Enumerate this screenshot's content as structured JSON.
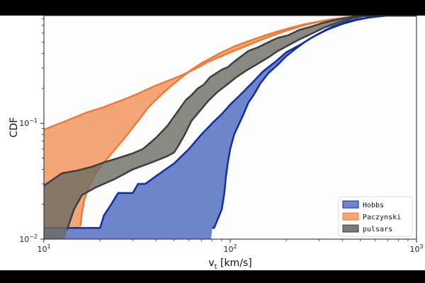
{
  "chart_data": {
    "type": "area",
    "xlabel_main": "v",
    "xlabel_sub": "t",
    "xlabel_unit": " [km/s]",
    "ylabel": "CDF",
    "x_scale": "log",
    "y_scale": "log",
    "xlim": [
      10,
      1000
    ],
    "ylim": [
      0.01,
      0.85
    ],
    "grid": false,
    "legend_position": "bottom-right",
    "x_ticks": [
      {
        "v": 10,
        "base": "10",
        "exp": "1"
      },
      {
        "v": 100,
        "base": "10",
        "exp": "2"
      },
      {
        "v": 1000,
        "base": "10",
        "exp": "3"
      }
    ],
    "y_ticks": [
      {
        "v": 0.01,
        "base": "10",
        "exp": "−2"
      },
      {
        "v": 0.1,
        "base": "10",
        "exp": "−1"
      }
    ],
    "series": [
      {
        "name": "Paczynski",
        "fill": "#f5a679",
        "stroke": "#ef7935",
        "upper": [
          [
            10,
            0.088
          ],
          [
            13,
            0.104
          ],
          [
            17,
            0.124
          ],
          [
            21,
            0.138
          ],
          [
            26,
            0.157
          ],
          [
            32,
            0.18
          ],
          [
            38,
            0.205
          ],
          [
            45,
            0.228
          ],
          [
            55,
            0.26
          ],
          [
            65,
            0.295
          ],
          [
            76,
            0.34
          ],
          [
            90,
            0.38
          ],
          [
            100,
            0.41
          ],
          [
            120,
            0.46
          ],
          [
            140,
            0.51
          ],
          [
            170,
            0.575
          ],
          [
            200,
            0.63
          ],
          [
            240,
            0.69
          ],
          [
            290,
            0.745
          ],
          [
            350,
            0.785
          ],
          [
            420,
            0.815
          ],
          [
            520,
            0.84
          ],
          [
            650,
            0.85
          ],
          [
            800,
            0.85
          ],
          [
            1000,
            0.85
          ]
        ],
        "lower": [
          [
            1000,
            0.85
          ],
          [
            800,
            0.85
          ],
          [
            600,
            0.85
          ],
          [
            500,
            0.84
          ],
          [
            420,
            0.82
          ],
          [
            350,
            0.79
          ],
          [
            300,
            0.755
          ],
          [
            250,
            0.715
          ],
          [
            210,
            0.665
          ],
          [
            180,
            0.62
          ],
          [
            150,
            0.565
          ],
          [
            125,
            0.51
          ],
          [
            105,
            0.46
          ],
          [
            90,
            0.41
          ],
          [
            80,
            0.37
          ],
          [
            70,
            0.33
          ],
          [
            62,
            0.29
          ],
          [
            55,
            0.25
          ],
          [
            49,
            0.215
          ],
          [
            44,
            0.185
          ],
          [
            40,
            0.16
          ],
          [
            36,
            0.135
          ],
          [
            33,
            0.112
          ],
          [
            30,
            0.092
          ],
          [
            27,
            0.074
          ],
          [
            24,
            0.059
          ],
          [
            21,
            0.046
          ],
          [
            19,
            0.037
          ],
          [
            17.5,
            0.029
          ],
          [
            16.5,
            0.022
          ],
          [
            16,
            0.017
          ],
          [
            15.7,
            0.013
          ],
          [
            15.5,
            0.01
          ],
          [
            10,
            0.01
          ]
        ]
      },
      {
        "name": "Hobbs",
        "fill": "#6f85cb",
        "stroke": "#0f2da7",
        "upper": [
          [
            10,
            0.0125
          ],
          [
            13,
            0.0125
          ],
          [
            18,
            0.0125
          ],
          [
            20,
            0.0125
          ],
          [
            21,
            0.016
          ],
          [
            23,
            0.02
          ],
          [
            25,
            0.025
          ],
          [
            30,
            0.025
          ],
          [
            32,
            0.03
          ],
          [
            35,
            0.03
          ],
          [
            40,
            0.035
          ],
          [
            45,
            0.04
          ],
          [
            50,
            0.045
          ],
          [
            60,
            0.06
          ],
          [
            70,
            0.08
          ],
          [
            80,
            0.1
          ],
          [
            90,
            0.12
          ],
          [
            100,
            0.145
          ],
          [
            115,
            0.18
          ],
          [
            130,
            0.22
          ],
          [
            150,
            0.28
          ],
          [
            175,
            0.34
          ],
          [
            200,
            0.41
          ],
          [
            240,
            0.48
          ],
          [
            280,
            0.56
          ],
          [
            330,
            0.64
          ],
          [
            400,
            0.72
          ],
          [
            480,
            0.78
          ],
          [
            560,
            0.82
          ],
          [
            650,
            0.85
          ],
          [
            1000,
            0.85
          ]
        ],
        "lower": [
          [
            1000,
            0.85
          ],
          [
            700,
            0.85
          ],
          [
            560,
            0.82
          ],
          [
            480,
            0.79
          ],
          [
            420,
            0.75
          ],
          [
            360,
            0.69
          ],
          [
            320,
            0.63
          ],
          [
            280,
            0.56
          ],
          [
            250,
            0.5
          ],
          [
            225,
            0.44
          ],
          [
            200,
            0.38
          ],
          [
            180,
            0.32
          ],
          [
            160,
            0.27
          ],
          [
            145,
            0.22
          ],
          [
            135,
            0.18
          ],
          [
            125,
            0.15
          ],
          [
            118,
            0.12
          ],
          [
            112,
            0.1
          ],
          [
            105,
            0.08
          ],
          [
            100,
            0.06
          ],
          [
            97,
            0.045
          ],
          [
            95,
            0.035
          ],
          [
            93,
            0.025
          ],
          [
            91,
            0.02
          ],
          [
            90,
            0.018
          ],
          [
            82,
            0.0125
          ],
          [
            80,
            0.0125
          ],
          [
            79,
            0.01
          ],
          [
            10,
            0.01
          ]
        ]
      },
      {
        "name": "pulsars",
        "fill": "#6b6b62",
        "fill_opacity": 0.8,
        "stroke": "#3a3f40",
        "upper": [
          [
            10,
            0.029
          ],
          [
            12.5,
            0.037
          ],
          [
            15,
            0.039
          ],
          [
            18,
            0.042
          ],
          [
            21,
            0.046
          ],
          [
            25,
            0.05
          ],
          [
            30,
            0.055
          ],
          [
            34,
            0.06
          ],
          [
            40,
            0.075
          ],
          [
            46,
            0.095
          ],
          [
            52,
            0.125
          ],
          [
            58,
            0.16
          ],
          [
            62,
            0.175
          ],
          [
            67,
            0.2
          ],
          [
            72,
            0.215
          ],
          [
            78,
            0.25
          ],
          [
            84,
            0.27
          ],
          [
            90,
            0.29
          ],
          [
            97,
            0.305
          ],
          [
            105,
            0.34
          ],
          [
            115,
            0.38
          ],
          [
            125,
            0.42
          ],
          [
            140,
            0.45
          ],
          [
            160,
            0.5
          ],
          [
            180,
            0.545
          ],
          [
            205,
            0.575
          ],
          [
            235,
            0.64
          ],
          [
            270,
            0.68
          ],
          [
            310,
            0.73
          ],
          [
            360,
            0.775
          ],
          [
            420,
            0.81
          ],
          [
            480,
            0.84
          ],
          [
            550,
            0.85
          ],
          [
            1000,
            0.85
          ]
        ],
        "lower": [
          [
            1000,
            0.85
          ],
          [
            600,
            0.85
          ],
          [
            520,
            0.84
          ],
          [
            460,
            0.81
          ],
          [
            410,
            0.77
          ],
          [
            360,
            0.72
          ],
          [
            320,
            0.67
          ],
          [
            290,
            0.62
          ],
          [
            260,
            0.57
          ],
          [
            230,
            0.52
          ],
          [
            205,
            0.47
          ],
          [
            180,
            0.42
          ],
          [
            160,
            0.37
          ],
          [
            140,
            0.325
          ],
          [
            122,
            0.285
          ],
          [
            108,
            0.25
          ],
          [
            96,
            0.215
          ],
          [
            85,
            0.185
          ],
          [
            76,
            0.155
          ],
          [
            68,
            0.125
          ],
          [
            62,
            0.105
          ],
          [
            57,
            0.08
          ],
          [
            53,
            0.065
          ],
          [
            50,
            0.056
          ],
          [
            46,
            0.052
          ],
          [
            38,
            0.046
          ],
          [
            30,
            0.04
          ],
          [
            24,
            0.033
          ],
          [
            19,
            0.028
          ],
          [
            16,
            0.024
          ],
          [
            14.5,
            0.018
          ],
          [
            13.3,
            0.012
          ],
          [
            13,
            0.01
          ],
          [
            10,
            0.01
          ]
        ]
      }
    ],
    "legend": [
      {
        "label": "Hobbs",
        "swatch": "#6f85cb",
        "edge": "#0f2da7"
      },
      {
        "label": "Paczynski",
        "swatch": "#f5a679",
        "edge": "#ef7935"
      },
      {
        "label": "pulsars",
        "swatch": "#7a7a74",
        "edge": "#3a3f40"
      }
    ]
  }
}
